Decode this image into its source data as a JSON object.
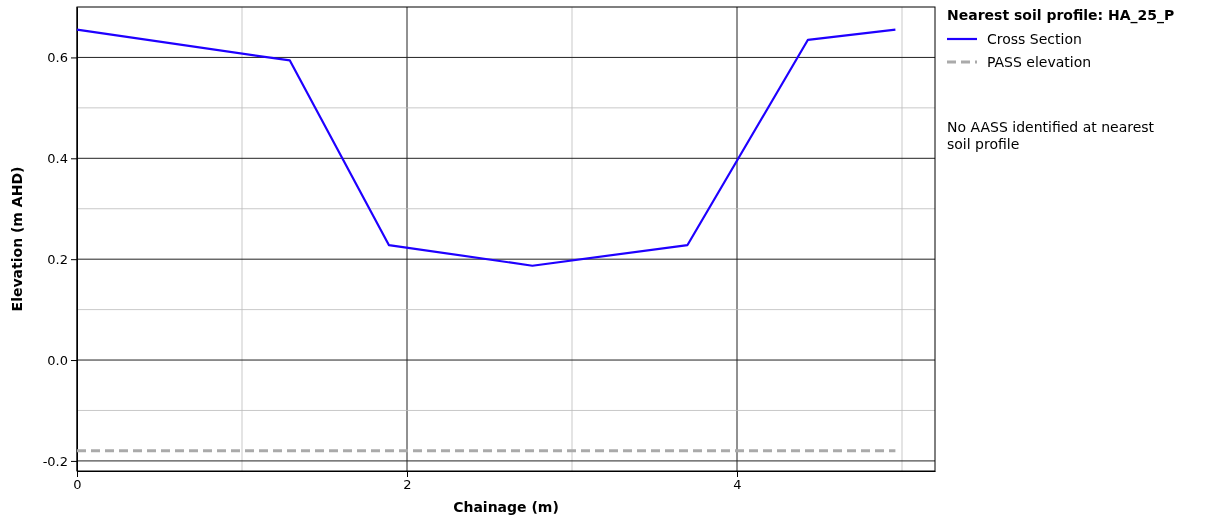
{
  "chart_data": {
    "type": "line",
    "xlabel": "Chainage (m)",
    "ylabel": "Elevation (m AHD)",
    "legend_title": "Nearest soil profile: HA_25_P",
    "legend": "right",
    "grid": true,
    "xlim": [
      0,
      5.2
    ],
    "xticks": [
      0,
      {
        "value": 1,
        "label": null
      },
      2,
      {
        "value": 3,
        "label": null
      },
      4,
      {
        "value": 5,
        "label": null
      }
    ],
    "ylim": [
      -0.22,
      0.7
    ],
    "yticks": [
      -0.2,
      {
        "value": -0.1,
        "label": null
      },
      {
        "value": 0,
        "label": "0.0"
      },
      {
        "value": 0.1,
        "label": null
      },
      0.2,
      {
        "value": 0.3,
        "label": null
      },
      0.4,
      {
        "value": 0.5,
        "label": null
      },
      0.6
    ],
    "series": [
      {
        "name": "Cross Section",
        "color": "#1f00ff",
        "x": [
          0,
          1.29,
          1.89,
          2.76,
          3.7,
          4.43,
          4.96
        ],
        "values": [
          0.655,
          0.594,
          0.228,
          0.187,
          0.228,
          0.635,
          0.655
        ]
      },
      {
        "name": "PASS elevation",
        "color": "#aaaaaa",
        "line_style": "dashed",
        "x": [
          0,
          4.96
        ],
        "values": [
          -0.18,
          -0.18
        ]
      }
    ],
    "annotations": [
      "No AASS identified at nearest soil profile"
    ]
  }
}
